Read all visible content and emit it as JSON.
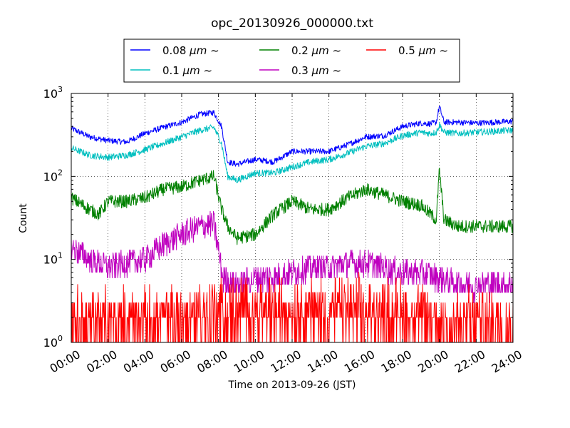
{
  "chart_data": {
    "type": "line",
    "title": "opc_20130926_000000.txt",
    "xlabel": "Time on 2013-09-26 (JST)",
    "ylabel": "Count",
    "x_scale": "time",
    "y_scale": "log",
    "xlim": [
      "00:00",
      "24:00"
    ],
    "ylim": [
      1,
      1000
    ],
    "x_ticks": [
      "00:00",
      "02:00",
      "04:00",
      "06:00",
      "08:00",
      "10:00",
      "12:00",
      "14:00",
      "16:00",
      "18:00",
      "20:00",
      "22:00",
      "24:00"
    ],
    "y_ticks": [
      {
        "base": "10",
        "exp": "0",
        "value": 1
      },
      {
        "base": "10",
        "exp": "1",
        "value": 10
      },
      {
        "base": "10",
        "exp": "2",
        "value": 100
      },
      {
        "base": "10",
        "exp": "3",
        "value": 1000
      }
    ],
    "grid": true,
    "legend_position": "top-center",
    "series": [
      {
        "name": "0.08 μm ~",
        "name_num": "0.08 ",
        "name_unit": "μm",
        "name_tail": " ~",
        "color": "#0000ff",
        "x": [
          "00:00",
          "01:00",
          "02:00",
          "03:00",
          "04:00",
          "05:00",
          "06:00",
          "07:00",
          "07:45",
          "08:10",
          "08:30",
          "09:00",
          "10:00",
          "11:00",
          "12:00",
          "13:00",
          "14:00",
          "15:00",
          "16:00",
          "17:00",
          "18:00",
          "19:00",
          "19:30",
          "19:50",
          "20:00",
          "20:15",
          "21:00",
          "22:00",
          "23:00",
          "24:00"
        ],
        "y": [
          380,
          300,
          270,
          260,
          330,
          390,
          450,
          560,
          590,
          400,
          150,
          140,
          160,
          150,
          200,
          200,
          200,
          240,
          300,
          310,
          400,
          440,
          430,
          450,
          700,
          450,
          450,
          440,
          450,
          460
        ]
      },
      {
        "name": "0.1 μm ~",
        "name_num": "0.1 ",
        "name_unit": "μm",
        "name_tail": " ~",
        "color": "#00bfbf",
        "x": [
          "00:00",
          "01:00",
          "02:00",
          "03:00",
          "04:00",
          "05:00",
          "06:00",
          "07:00",
          "07:45",
          "08:10",
          "08:30",
          "09:00",
          "10:00",
          "11:00",
          "12:00",
          "13:00",
          "14:00",
          "15:00",
          "16:00",
          "17:00",
          "18:00",
          "19:00",
          "19:30",
          "19:50",
          "20:00",
          "20:15",
          "21:00",
          "22:00",
          "23:00",
          "24:00"
        ],
        "y": [
          220,
          180,
          170,
          180,
          210,
          250,
          300,
          360,
          390,
          250,
          100,
          90,
          110,
          110,
          130,
          150,
          160,
          190,
          230,
          250,
          310,
          340,
          330,
          340,
          420,
          340,
          330,
          340,
          350,
          360
        ]
      },
      {
        "name": "0.2 μm ~",
        "name_num": "0.2 ",
        "name_unit": "μm",
        "name_tail": " ~",
        "color": "#008000",
        "x": [
          "00:00",
          "01:00",
          "01:30",
          "02:00",
          "03:00",
          "04:00",
          "05:00",
          "06:00",
          "07:00",
          "07:45",
          "08:10",
          "08:30",
          "09:00",
          "10:00",
          "11:00",
          "12:00",
          "13:00",
          "14:00",
          "15:00",
          "16:00",
          "17:00",
          "18:00",
          "19:00",
          "19:50",
          "20:00",
          "20:15",
          "21:00",
          "22:00",
          "23:00",
          "24:00"
        ],
        "y": [
          55,
          40,
          35,
          50,
          50,
          55,
          70,
          75,
          90,
          100,
          40,
          25,
          18,
          20,
          35,
          50,
          40,
          40,
          55,
          70,
          60,
          50,
          45,
          30,
          120,
          30,
          25,
          25,
          25,
          25
        ]
      },
      {
        "name": "0.3 μm ~",
        "name_num": "0.3 ",
        "name_unit": "μm",
        "name_tail": " ~",
        "color": "#bf00bf",
        "x": [
          "00:00",
          "01:00",
          "02:00",
          "03:00",
          "04:00",
          "05:00",
          "06:00",
          "07:00",
          "07:45",
          "08:15",
          "09:00",
          "10:00",
          "11:00",
          "12:00",
          "13:00",
          "14:00",
          "15:00",
          "16:00",
          "17:00",
          "18:00",
          "19:00",
          "20:00",
          "21:00",
          "22:00",
          "23:00",
          "24:00"
        ],
        "y": [
          14,
          10,
          8,
          9,
          10,
          15,
          20,
          25,
          27,
          6,
          5,
          6,
          6,
          7,
          8,
          8,
          9,
          9,
          8,
          7,
          7,
          6,
          5,
          5,
          5,
          5
        ]
      },
      {
        "name": "0.5 μm ~",
        "name_num": "0.5 ",
        "name_unit": "μm",
        "name_tail": " ~",
        "color": "#ff0000",
        "x": [
          "00:00",
          "02:00",
          "04:00",
          "06:00",
          "07:45",
          "08:15",
          "10:00",
          "12:00",
          "14:00",
          "16:00",
          "18:00",
          "20:00",
          "22:00",
          "24:00"
        ],
        "y": [
          1.5,
          1.5,
          1.5,
          1.7,
          2,
          2,
          2,
          2,
          2,
          2,
          2,
          1.5,
          1.5,
          1.5
        ]
      }
    ]
  }
}
